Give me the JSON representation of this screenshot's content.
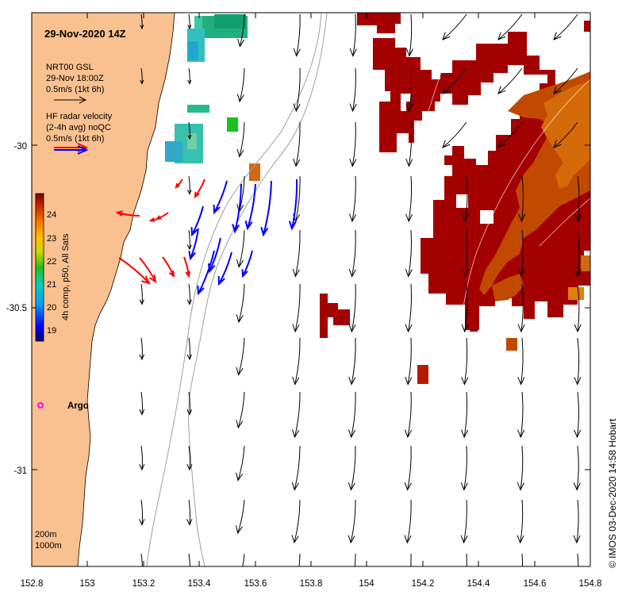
{
  "map": {
    "title": "29-Nov-2020 14Z",
    "x_ticks": [
      "152.8",
      "153",
      "153.2",
      "153.4",
      "153.6",
      "153.8",
      "154",
      "154.2",
      "154.4",
      "154.6",
      "154.8"
    ],
    "y_ticks": [
      "-30",
      "-30.5",
      "-31"
    ],
    "lon_range": [
      152.8,
      154.8
    ],
    "lat_range": [
      -31.25,
      -29.6
    ],
    "colors": {
      "land": "#f9c18f",
      "warm": "#a30000",
      "model_arrow": "#000000",
      "radar_east": "#ff0000",
      "radar_west": "#0000ff",
      "argo": "#ff00ff",
      "bathy": "#999999"
    }
  },
  "legend": {
    "model_name": "NRT00 GSL",
    "model_time": "29-Nov 18:00Z",
    "model_scale": "0.5m/s (1kt 6h)",
    "radar_line1": "HF radar velocity",
    "radar_line2": "(2-4h avg) noQC",
    "radar_scale": "0.5m/s (1kt 6h)"
  },
  "colorbar": {
    "label": "4h comp, p50, All Sats",
    "ticks": [
      "24",
      "23",
      "22",
      "21",
      "20",
      "19"
    ],
    "range": [
      18.5,
      24.8
    ]
  },
  "argo": {
    "label": "Argo"
  },
  "bathy": {
    "line1": "200m",
    "line2": "1000m"
  },
  "credit": "©  IMOS 03-Dec-2020 14:58 Hobart"
}
